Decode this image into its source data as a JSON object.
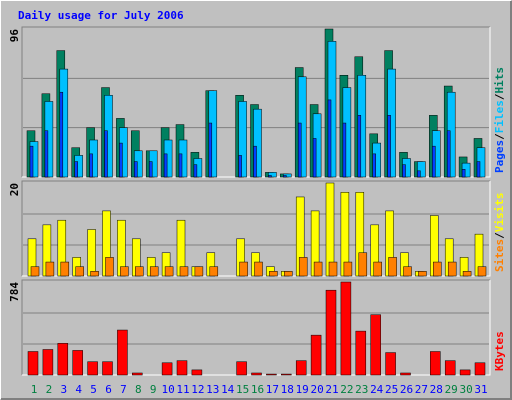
{
  "title": "Daily usage for July 2006",
  "legend_separator": "/",
  "categories": [
    "1",
    "2",
    "3",
    "4",
    "5",
    "6",
    "7",
    "8",
    "9",
    "10",
    "11",
    "12",
    "13",
    "14",
    "15",
    "16",
    "17",
    "18",
    "19",
    "20",
    "21",
    "22",
    "23",
    "24",
    "25",
    "26",
    "27",
    "28",
    "29",
    "30",
    "31"
  ],
  "category_colors": [
    "#008040",
    "#008040",
    "#0000ff",
    "#0000ff",
    "#0000ff",
    "#0000ff",
    "#0000ff",
    "#008040",
    "#008040",
    "#0000ff",
    "#0000ff",
    "#0000ff",
    "#0000ff",
    "#0000ff",
    "#008040",
    "#008040",
    "#0000ff",
    "#0000ff",
    "#0000ff",
    "#0000ff",
    "#0000ff",
    "#008040",
    "#008040",
    "#0000ff",
    "#0000ff",
    "#0000ff",
    "#0000ff",
    "#0000ff",
    "#008040",
    "#008040",
    "#0000ff"
  ],
  "chart_data": [
    {
      "type": "bar",
      "ylim": [
        0,
        96
      ],
      "yticks": [
        96
      ],
      "grid": true,
      "series": [
        {
          "name": "Pages",
          "color": "#0040ff",
          "values": [
            20,
            30,
            55,
            10,
            15,
            30,
            22,
            10,
            10,
            15,
            15,
            8,
            35,
            0,
            14,
            20,
            1,
            1,
            35,
            25,
            50,
            35,
            40,
            15,
            40,
            8,
            4,
            20,
            30,
            5,
            10
          ]
        },
        {
          "name": "Files",
          "color": "#00c0ff",
          "values": [
            23,
            49,
            70,
            14,
            24,
            53,
            32,
            17,
            17,
            24,
            24,
            12,
            56,
            0,
            49,
            44,
            3,
            2,
            65,
            41,
            88,
            58,
            66,
            22,
            70,
            12,
            10,
            30,
            55,
            9,
            19
          ]
        },
        {
          "name": "Hits",
          "color": "#008060",
          "values": [
            30,
            54,
            82,
            19,
            32,
            58,
            38,
            30,
            17,
            32,
            34,
            16,
            56,
            0,
            53,
            47,
            3,
            2,
            71,
            47,
            96,
            66,
            78,
            28,
            82,
            16,
            10,
            40,
            59,
            13,
            25
          ]
        }
      ]
    },
    {
      "type": "bar",
      "ylim": [
        0,
        20
      ],
      "yticks": [
        20
      ],
      "grid": true,
      "series": [
        {
          "name": "Sites",
          "color": "#ff8000",
          "values": [
            2,
            3,
            3,
            2,
            1,
            4,
            2,
            2,
            2,
            2,
            2,
            2,
            2,
            0,
            3,
            3,
            1,
            1,
            4,
            3,
            3,
            3,
            5,
            3,
            4,
            2,
            1,
            3,
            3,
            1,
            2
          ]
        },
        {
          "name": "Visits",
          "color": "#ffff00",
          "values": [
            8,
            11,
            12,
            4,
            10,
            14,
            12,
            8,
            4,
            5,
            12,
            2,
            5,
            0,
            8,
            5,
            2,
            1,
            17,
            14,
            20,
            18,
            18,
            11,
            14,
            5,
            1,
            13,
            8,
            4,
            9
          ]
        }
      ]
    },
    {
      "type": "bar",
      "ylim": [
        0,
        784
      ],
      "yticks": [
        784
      ],
      "grid": true,
      "series": [
        {
          "name": "KBytes",
          "color": "#ff0000",
          "values": [
            198,
            215,
            267,
            207,
            112,
            112,
            379,
            17,
            0,
            103,
            121,
            43,
            0,
            0,
            112,
            17,
            8,
            8,
            121,
            336,
            715,
            784,
            370,
            508,
            189,
            17,
            0,
            198,
            121,
            43,
            103
          ]
        }
      ]
    }
  ]
}
